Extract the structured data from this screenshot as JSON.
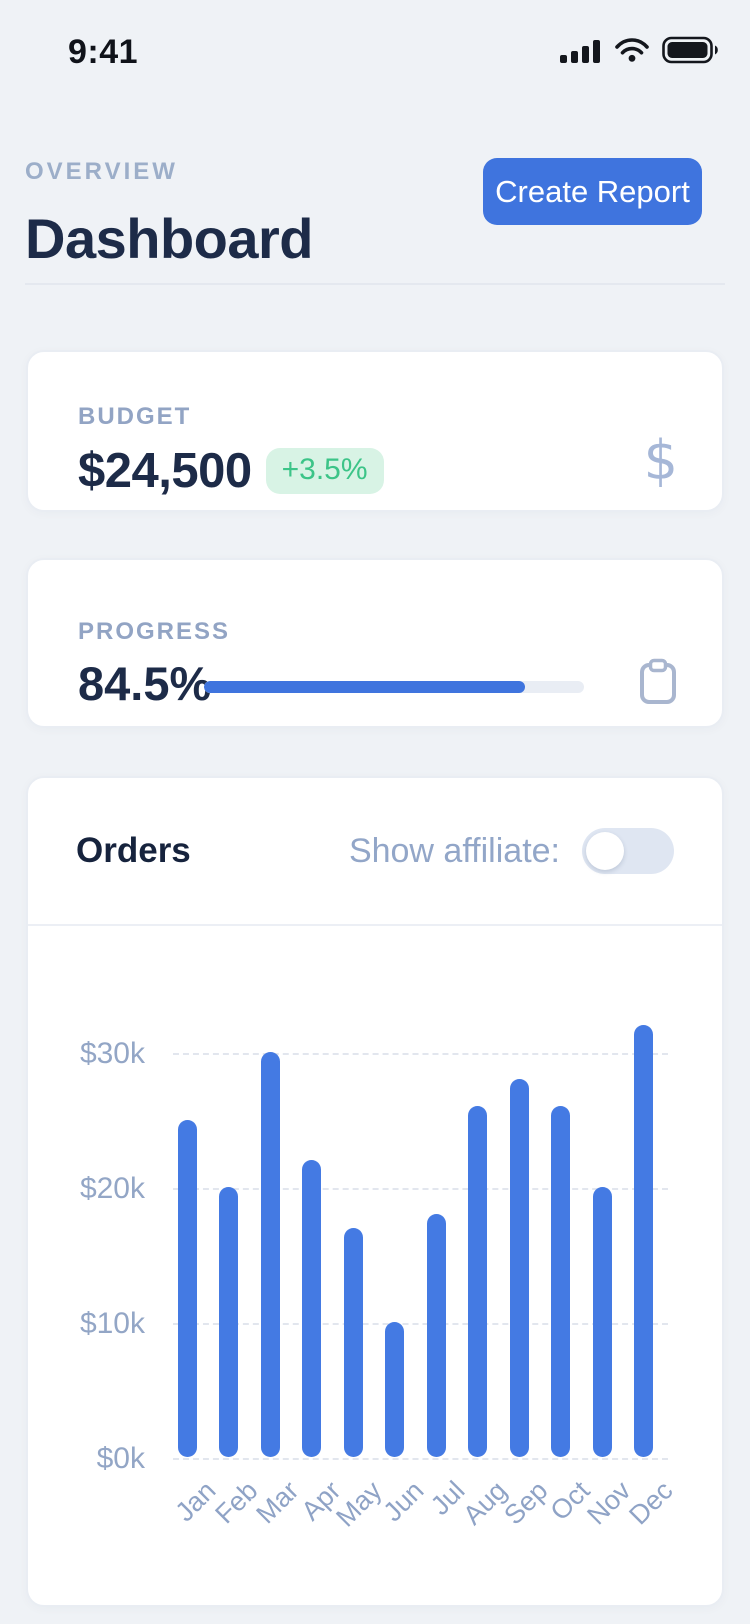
{
  "status_bar": {
    "time": "9:41"
  },
  "header": {
    "eyebrow": "OVERVIEW",
    "title": "Dashboard",
    "create_report_label": "Create Report"
  },
  "budget_card": {
    "label": "BUDGET",
    "value": "$24,500",
    "delta": "+3.5%"
  },
  "progress_card": {
    "label": "PROGRESS",
    "value": "84.5%",
    "percent": 84.5
  },
  "orders_card": {
    "title": "Orders",
    "toggle_label": "Show affiliate:",
    "toggle_on": false
  },
  "chart_data": {
    "type": "bar",
    "title": "Orders",
    "categories": [
      "Jan",
      "Feb",
      "Mar",
      "Apr",
      "May",
      "Jun",
      "Jul",
      "Aug",
      "Sep",
      "Oct",
      "Nov",
      "Dec"
    ],
    "values": [
      25,
      20,
      30,
      22,
      17,
      10,
      18,
      26,
      28,
      26,
      20,
      32
    ],
    "value_unit": "thousand dollars",
    "y_ticks": [
      "$0k",
      "$10k",
      "$20k",
      "$30k"
    ],
    "ylim": [
      0,
      33
    ],
    "xlabel": "",
    "ylabel": "",
    "grid": "horizontal dashed",
    "legend": "none",
    "bar_color": "#447ae3"
  },
  "colors": {
    "accent_blue": "#3f74de",
    "bar_blue": "#447ae3",
    "green_text": "#3cc488",
    "green_bg": "#d8f3e5",
    "page_bg": "#eff2f6",
    "navy_text": "#1d2b48",
    "muted_text": "#93a5c5"
  },
  "icons": [
    "cellular-signal-icon",
    "wifi-icon",
    "battery-icon",
    "dollar-icon",
    "clipboard-icon"
  ]
}
